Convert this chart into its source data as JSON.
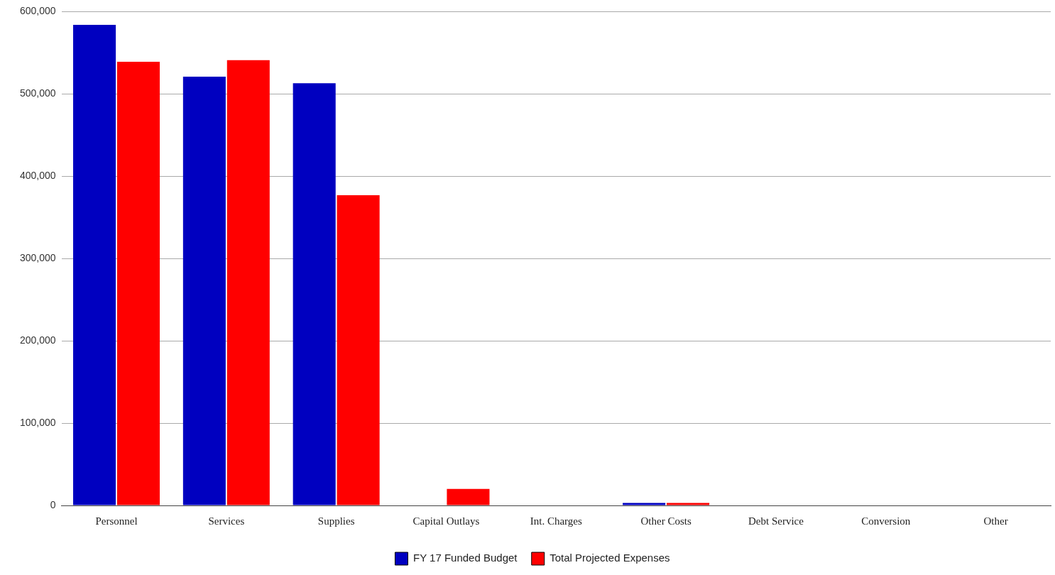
{
  "chart_data": {
    "type": "bar",
    "categories": [
      "Personnel",
      "Services",
      "Supplies",
      "Capital Outlays",
      "Int. Charges",
      "Other Costs",
      "Debt Service",
      "Conversion",
      "Other"
    ],
    "series": [
      {
        "name": "FY 17 Funded Budget",
        "color": "#0000c0",
        "values": [
          584000,
          521000,
          513000,
          0,
          0,
          3000,
          0,
          0,
          0
        ]
      },
      {
        "name": "Total Projected Expenses",
        "color": "#ff0000",
        "values": [
          539000,
          541000,
          377000,
          20000,
          0,
          3000,
          0,
          0,
          0
        ]
      }
    ],
    "ylim": [
      0,
      600000
    ],
    "yticks": [
      {
        "value": 0,
        "label": "0"
      },
      {
        "value": 100000,
        "label": "100,000"
      },
      {
        "value": 200000,
        "label": "200,000"
      },
      {
        "value": 300000,
        "label": "300,000"
      },
      {
        "value": 400000,
        "label": "400,000"
      },
      {
        "value": 500000,
        "label": "500,000"
      },
      {
        "value": 600000,
        "label": "600,000"
      }
    ],
    "grid": "y",
    "legend": "bottom"
  }
}
